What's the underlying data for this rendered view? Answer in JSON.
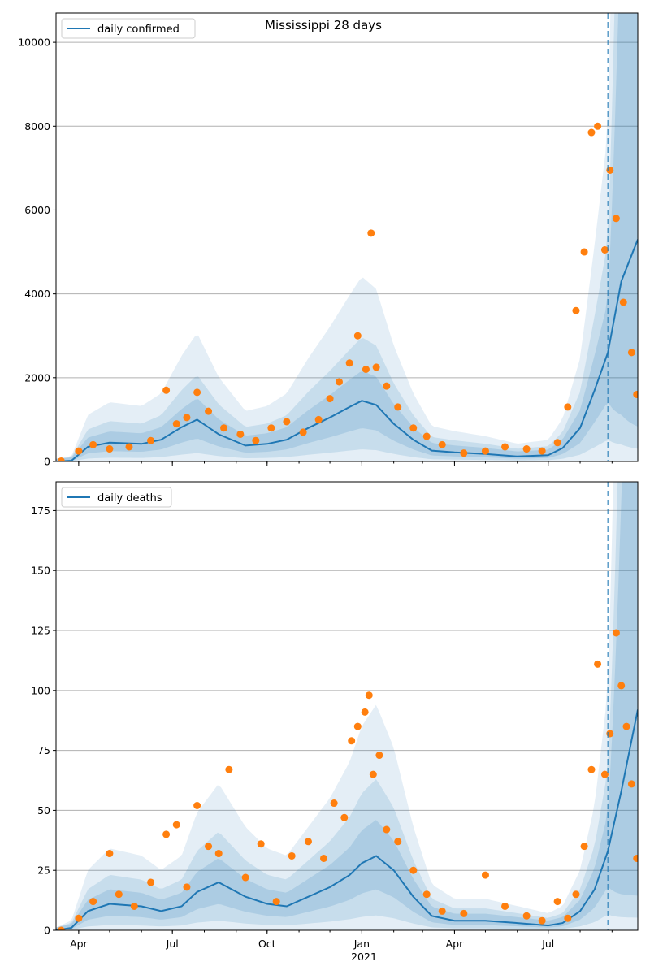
{
  "title": "Mississippi 28 days",
  "colors": {
    "model_line": "#1f77b4",
    "observed_points": "#ff7f0e",
    "band": "#1f77b4",
    "grid": "#b0b0b0",
    "forecast_marker": "#1f77b4"
  },
  "shared_x": {
    "range": [
      "2020-03-10",
      "2021-09-26"
    ],
    "tick_labels": [
      "Apr",
      "Jul",
      "Oct",
      "Jan",
      "Apr",
      "Jul"
    ],
    "tick_dates": [
      "2020-04-01",
      "2020-07-01",
      "2020-10-01",
      "2021-01-01",
      "2021-04-01",
      "2021-07-01"
    ],
    "year_label": "2021",
    "forecast_start": "2021-08-28"
  },
  "chart_data": [
    {
      "type": "line",
      "legend": "daily confirmed",
      "legend_position": "top-left",
      "grid": "horizontal",
      "ylim": [
        0,
        10700
      ],
      "y_ticks": [
        0,
        2000,
        4000,
        6000,
        8000,
        10000
      ],
      "series": [
        {
          "name": "daily confirmed",
          "kind": "line",
          "x": [
            "2020-03-10",
            "2020-03-25",
            "2020-04-10",
            "2020-05-01",
            "2020-06-01",
            "2020-06-20",
            "2020-07-10",
            "2020-07-25",
            "2020-08-15",
            "2020-09-10",
            "2020-10-01",
            "2020-10-20",
            "2020-11-10",
            "2020-12-01",
            "2020-12-20",
            "2021-01-01",
            "2021-01-15",
            "2021-02-01",
            "2021-02-20",
            "2021-03-10",
            "2021-04-01",
            "2021-05-01",
            "2021-06-01",
            "2021-07-01",
            "2021-07-15",
            "2021-08-01",
            "2021-08-15",
            "2021-08-28",
            "2021-09-10",
            "2021-09-26"
          ],
          "y": [
            0,
            20,
            350,
            450,
            420,
            520,
            820,
            1000,
            650,
            380,
            420,
            520,
            800,
            1050,
            1300,
            1450,
            1350,
            900,
            520,
            260,
            220,
            180,
            120,
            150,
            320,
            800,
            1700,
            2600,
            4300,
            5300
          ]
        },
        {
          "name": "observed",
          "kind": "scatter",
          "x": [
            "2020-03-15",
            "2020-04-01",
            "2020-04-15",
            "2020-05-01",
            "2020-05-20",
            "2020-06-10",
            "2020-06-25",
            "2020-07-05",
            "2020-07-15",
            "2020-07-25",
            "2020-08-05",
            "2020-08-20",
            "2020-09-05",
            "2020-09-20",
            "2020-10-05",
            "2020-10-20",
            "2020-11-05",
            "2020-11-20",
            "2020-12-01",
            "2020-12-10",
            "2020-12-20",
            "2020-12-28",
            "2021-01-05",
            "2021-01-10",
            "2021-01-15",
            "2021-01-25",
            "2021-02-05",
            "2021-02-20",
            "2021-03-05",
            "2021-03-20",
            "2021-04-10",
            "2021-05-01",
            "2021-05-20",
            "2021-06-10",
            "2021-06-25",
            "2021-07-10",
            "2021-07-20",
            "2021-07-28",
            "2021-08-05",
            "2021-08-12",
            "2021-08-18",
            "2021-08-25",
            "2021-08-30",
            "2021-09-05",
            "2021-09-12",
            "2021-09-20",
            "2021-09-25"
          ],
          "y": [
            10,
            250,
            400,
            300,
            350,
            500,
            1700,
            900,
            1050,
            1650,
            1200,
            800,
            650,
            500,
            800,
            950,
            700,
            1000,
            1500,
            1900,
            2350,
            3000,
            2200,
            5450,
            2250,
            1800,
            1300,
            800,
            600,
            400,
            200,
            250,
            350,
            300,
            250,
            450,
            1300,
            3600,
            5000,
            7850,
            8000,
            5050,
            6950,
            5800,
            3800,
            2600,
            1600
          ]
        }
      ]
    },
    {
      "type": "line",
      "legend": "daily deaths",
      "legend_position": "top-left",
      "grid": "horizontal",
      "ylim": [
        0,
        187
      ],
      "y_ticks": [
        0,
        25,
        50,
        75,
        100,
        125,
        150,
        175
      ],
      "series": [
        {
          "name": "daily deaths",
          "kind": "line",
          "x": [
            "2020-03-10",
            "2020-03-25",
            "2020-04-10",
            "2020-05-01",
            "2020-06-01",
            "2020-06-20",
            "2020-07-10",
            "2020-07-25",
            "2020-08-15",
            "2020-09-10",
            "2020-10-01",
            "2020-10-20",
            "2020-11-10",
            "2020-12-01",
            "2020-12-20",
            "2021-01-01",
            "2021-01-15",
            "2021-02-01",
            "2021-02-20",
            "2021-03-10",
            "2021-04-01",
            "2021-05-01",
            "2021-06-01",
            "2021-07-01",
            "2021-07-15",
            "2021-08-01",
            "2021-08-15",
            "2021-08-28",
            "2021-09-10",
            "2021-09-26"
          ],
          "y": [
            0,
            1,
            8,
            11,
            10,
            8,
            10,
            16,
            20,
            14,
            11,
            10,
            14,
            18,
            23,
            28,
            31,
            25,
            14,
            6,
            4,
            4,
            3,
            2,
            3,
            8,
            17,
            33,
            58,
            92
          ]
        },
        {
          "name": "observed",
          "kind": "scatter",
          "x": [
            "2020-03-15",
            "2020-04-01",
            "2020-04-15",
            "2020-05-01",
            "2020-05-10",
            "2020-05-25",
            "2020-06-10",
            "2020-06-25",
            "2020-07-05",
            "2020-07-15",
            "2020-07-25",
            "2020-08-05",
            "2020-08-15",
            "2020-08-25",
            "2020-09-10",
            "2020-09-25",
            "2020-10-10",
            "2020-10-25",
            "2020-11-10",
            "2020-11-25",
            "2020-12-05",
            "2020-12-15",
            "2020-12-22",
            "2020-12-28",
            "2021-01-04",
            "2021-01-08",
            "2021-01-12",
            "2021-01-18",
            "2021-01-25",
            "2021-02-05",
            "2021-02-20",
            "2021-03-05",
            "2021-03-20",
            "2021-04-10",
            "2021-05-01",
            "2021-05-20",
            "2021-06-10",
            "2021-06-25",
            "2021-07-10",
            "2021-07-20",
            "2021-07-28",
            "2021-08-05",
            "2021-08-12",
            "2021-08-18",
            "2021-08-25",
            "2021-08-30",
            "2021-09-05",
            "2021-09-10",
            "2021-09-15",
            "2021-09-20",
            "2021-09-25"
          ],
          "y": [
            0,
            5,
            12,
            32,
            15,
            10,
            20,
            40,
            44,
            18,
            52,
            35,
            32,
            67,
            22,
            36,
            12,
            31,
            37,
            30,
            53,
            47,
            79,
            85,
            91,
            98,
            65,
            73,
            42,
            37,
            25,
            15,
            8,
            7,
            23,
            10,
            6,
            4,
            12,
            5,
            15,
            35,
            67,
            111,
            65,
            82,
            124,
            102,
            85,
            61,
            30
          ]
        }
      ]
    }
  ]
}
